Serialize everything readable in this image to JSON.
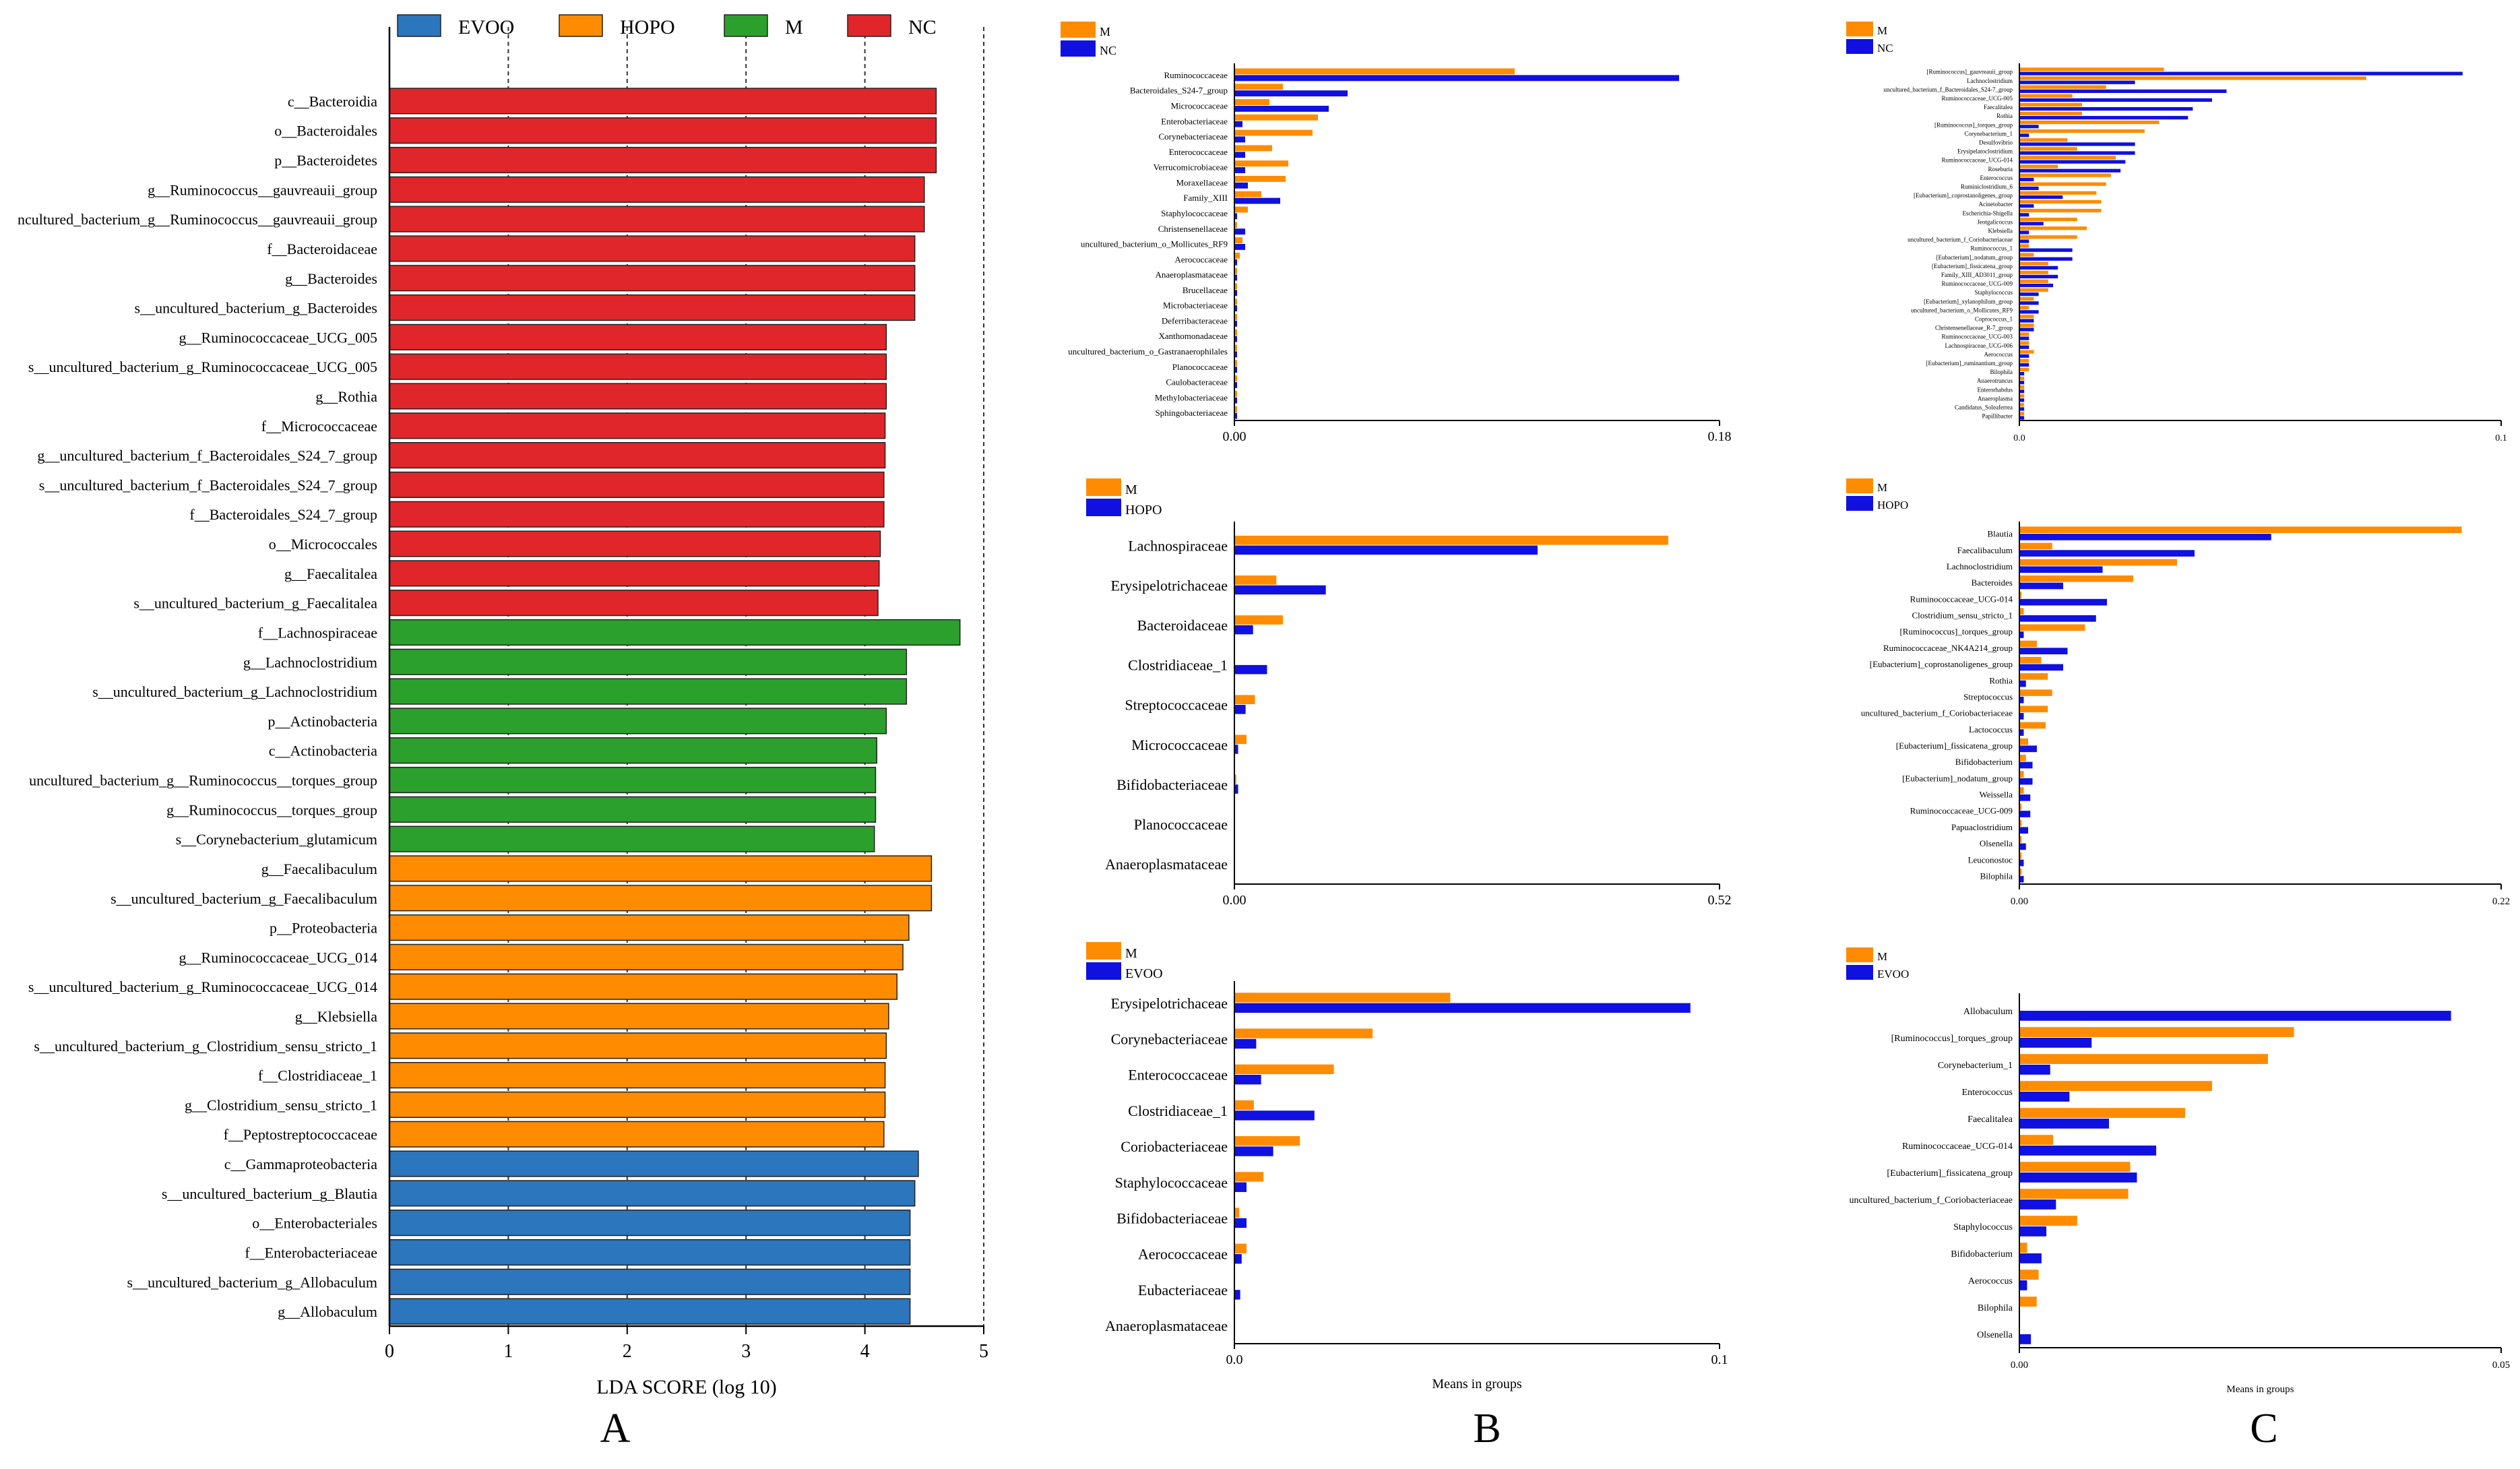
{
  "panel_letters": {
    "A": "A",
    "B": "B",
    "C": "C"
  },
  "colors": {
    "EVOO": "#2b76bd",
    "HOPO": "#ff8c00",
    "M": "#2ca02c",
    "NC": "#e0262a",
    "pair_a": "#ff8c00",
    "pair_b": "#1010e0"
  },
  "chart_data": [
    {
      "id": "A",
      "type": "bar",
      "orientation": "horizontal",
      "xlabel": "LDA SCORE (log 10)",
      "xlim": [
        0,
        5
      ],
      "xticks": [
        0,
        1,
        2,
        3,
        4,
        5
      ],
      "legend": [
        "EVOO",
        "HOPO",
        "M",
        "NC"
      ],
      "categories": [
        "c__Bacteroidia",
        "o__Bacteroidales",
        "p__Bacteroidetes",
        "g__Ruminococcus__gauvreauii_group",
        "ncultured_bacterium_g__Ruminococcus__gauvreauii_group",
        "f__Bacteroidaceae",
        "g__Bacteroides",
        "s__uncultured_bacterium_g_Bacteroides",
        "g__Ruminococcaceae_UCG_005",
        "s__uncultured_bacterium_g_Ruminococcaceae_UCG_005",
        "g__Rothia",
        "f__Micrococcaceae",
        "g__uncultured_bacterium_f_Bacteroidales_S24_7_group",
        "s__uncultured_bacterium_f_Bacteroidales_S24_7_group",
        "f__Bacteroidales_S24_7_group",
        "o__Micrococcales",
        "g__Faecalitalea",
        "s__uncultured_bacterium_g_Faecalitalea",
        "f__Lachnospiraceae",
        "g__Lachnoclostridium",
        "s__uncultured_bacterium_g_Lachnoclostridium",
        "p__Actinobacteria",
        "c__Actinobacteria",
        "uncultured_bacterium_g__Ruminococcus__torques_group",
        "g__Ruminococcus__torques_group",
        "s__Corynebacterium_glutamicum",
        "g__Faecalibaculum",
        "s__uncultured_bacterium_g_Faecalibaculum",
        "p__Proteobacteria",
        "g__Ruminococcaceae_UCG_014",
        "s__uncultured_bacterium_g_Ruminococcaceae_UCG_014",
        "g__Klebsiella",
        "s__uncultured_bacterium_g_Clostridium_sensu_stricto_1",
        "f__Clostridiaceae_1",
        "g__Clostridium_sensu_stricto_1",
        "f__Peptostreptococcaceae",
        "c__Gammaproteobacteria",
        "s__uncultured_bacterium_g_Blautia",
        "o__Enterobacteriales",
        "f__Enterobacteriaceae",
        "s__uncultured_bacterium_g_Allobaculum",
        "g__Allobaculum"
      ],
      "values": [
        4.6,
        4.6,
        4.6,
        4.5,
        4.5,
        4.42,
        4.42,
        4.42,
        4.18,
        4.18,
        4.18,
        4.17,
        4.17,
        4.16,
        4.16,
        4.13,
        4.12,
        4.11,
        4.8,
        4.35,
        4.35,
        4.18,
        4.1,
        4.09,
        4.09,
        4.08,
        4.56,
        4.56,
        4.37,
        4.32,
        4.27,
        4.2,
        4.18,
        4.17,
        4.17,
        4.16,
        4.45,
        4.42,
        4.38,
        4.38,
        4.38,
        4.38
      ],
      "groups": [
        "NC",
        "NC",
        "NC",
        "NC",
        "NC",
        "NC",
        "NC",
        "NC",
        "NC",
        "NC",
        "NC",
        "NC",
        "NC",
        "NC",
        "NC",
        "NC",
        "NC",
        "NC",
        "M",
        "M",
        "M",
        "M",
        "M",
        "M",
        "M",
        "M",
        "HOPO",
        "HOPO",
        "HOPO",
        "HOPO",
        "HOPO",
        "HOPO",
        "HOPO",
        "HOPO",
        "HOPO",
        "HOPO",
        "EVOO",
        "EVOO",
        "EVOO",
        "EVOO",
        "EVOO",
        "EVOO"
      ]
    },
    {
      "id": "B1",
      "type": "bar",
      "orientation": "horizontal",
      "legend": [
        "M",
        "NC"
      ],
      "xlim": [
        0,
        0.18
      ],
      "xticks": [
        "0.00",
        "0.18"
      ],
      "xlabel": "",
      "categories": [
        "Ruminococcaceae",
        "Bacteroidales_S24-7_group",
        "Micrococcaceae",
        "Enterobacteriaceae",
        "Corynebacteriaceae",
        "Enterococcaceae",
        "Verrucomicrobiaceae",
        "Moraxellaceae",
        "Family_XIII",
        "Staphylococcaceae",
        "Christensenellaceae",
        "uncultured_bacterium_o_Mollicutes_RF9",
        "Aerococcaceae",
        "Anaeroplasmataceae",
        "Brucellaceae",
        "Microbacteriaceae",
        "Deferribacteraceae",
        "Xanthomonadaceae",
        "uncultured_bacterium_o_Gastranaerophilales",
        "Planococcaceae",
        "Caulobacteraceae",
        "Methylobacteriaceae",
        "Sphingobacteriaceae"
      ],
      "series": [
        {
          "name": "M",
          "values": [
            0.104,
            0.018,
            0.013,
            0.031,
            0.029,
            0.014,
            0.02,
            0.019,
            0.01,
            0.005,
            0.001,
            0.003,
            0.002,
            0.001,
            0.001,
            0.001,
            0.001,
            0.001,
            0.001,
            0.001,
            0.001,
            0.001,
            0.001
          ]
        },
        {
          "name": "NC",
          "values": [
            0.165,
            0.042,
            0.035,
            0.003,
            0.004,
            0.004,
            0.004,
            0.005,
            0.017,
            0.001,
            0.004,
            0.004,
            0.001,
            0.001,
            0.001,
            0.001,
            0.001,
            0.001,
            0.001,
            0.001,
            0.001,
            0.001,
            0.001
          ]
        }
      ]
    },
    {
      "id": "B2",
      "type": "bar",
      "orientation": "horizontal",
      "legend": [
        "M",
        "HOPO"
      ],
      "xlim": [
        0,
        0.52
      ],
      "xticks": [
        "0.00",
        "0.52"
      ],
      "xlabel": "",
      "categories": [
        "Lachnospiraceae",
        "Erysipelotrichaceae",
        "Bacteroidaceae",
        "Clostridiaceae_1",
        "Streptococcaceae",
        "Micrococcaceae",
        "Bifidobacteriaceae",
        "Planococcaceae",
        "Anaeroplasmataceae"
      ],
      "series": [
        {
          "name": "M",
          "values": [
            0.465,
            0.045,
            0.052,
            0.0,
            0.022,
            0.013,
            0.002,
            0.0,
            0.0
          ]
        },
        {
          "name": "HOPO",
          "values": [
            0.325,
            0.098,
            0.02,
            0.035,
            0.012,
            0.004,
            0.004,
            0.0,
            0.0
          ]
        }
      ]
    },
    {
      "id": "B3",
      "type": "bar",
      "orientation": "horizontal",
      "legend": [
        "M",
        "EVOO"
      ],
      "xlim": [
        0,
        0.1
      ],
      "xticks": [
        "0.0",
        "0.1"
      ],
      "xlabel": "Means in groups",
      "categories": [
        "Erysipelotrichaceae",
        "Corynebacteriaceae",
        "Enterococcaceae",
        "Clostridiaceae_1",
        "Coriobacteriaceae",
        "Staphylococcaceae",
        "Bifidobacteriaceae",
        "Aerococcaceae",
        "Eubacteriaceae",
        "Anaeroplasmataceae"
      ],
      "series": [
        {
          "name": "M",
          "values": [
            0.0445,
            0.0285,
            0.0205,
            0.004,
            0.0135,
            0.006,
            0.001,
            0.0025,
            0.0,
            0.0
          ]
        },
        {
          "name": "EVOO",
          "values": [
            0.094,
            0.0045,
            0.0055,
            0.0165,
            0.008,
            0.0025,
            0.0025,
            0.0015,
            0.0012,
            0.0
          ]
        }
      ]
    },
    {
      "id": "C1",
      "type": "bar",
      "orientation": "horizontal",
      "legend": [
        "M",
        "NC"
      ],
      "xlim": [
        0,
        0.1
      ],
      "xticks": [
        "0.0",
        "0.1"
      ],
      "xlabel": "",
      "categories": [
        "[Ruminococcus]_gauvreauii_group",
        "Lachnoclostridium",
        "uncultured_bacterium_f_Bacteroidales_S24-7_group",
        "Ruminococcaceae_UCG-005",
        "Faecalitalea",
        "Rothia",
        "[Ruminococcus]_torques_group",
        "Corynebacterium_1",
        "Desulfovibrio",
        "Erysipelatoclostridium",
        "Ruminococcaceae_UCG-014",
        "Roseburia",
        "Enterococcus",
        "Ruminiclostridium_6",
        "[Eubacterium]_coprostanoligenes_group",
        "Acinetobacter",
        "Escherichia-Shigella",
        "Jeotgalicoccus",
        "Klebsiella",
        "uncultured_bacterium_f_Coriobacteriaceae",
        "Ruminococcus_1",
        "[Eubacterium]_nodatum_group",
        "[Eubacterium]_fissicatena_group",
        "Family_XIII_AD3011_group",
        "Ruminococcaceae_UCG-009",
        "Staphylococcus",
        "[Eubacterium]_xylanophilum_group",
        "uncultured_bacterium_o_Mollicutes_RF9",
        "Coprococcus_1",
        "Christensenellaceae_R-7_group",
        "Ruminococcaceae_UCG-003",
        "Lachnospiraceae_UCG-006",
        "Aerococcus",
        "[Eubacterium]_ruminantium_group",
        "Bilophila",
        "Anaerotruncus",
        "Enterorhabdus",
        "Anaeroplasma",
        "Candidatus_Soleaferrea",
        "Papillibacter"
      ],
      "series": [
        {
          "name": "M",
          "values": [
            0.03,
            0.072,
            0.018,
            0.011,
            0.013,
            0.013,
            0.029,
            0.026,
            0.01,
            0.012,
            0.02,
            0.008,
            0.019,
            0.018,
            0.016,
            0.017,
            0.017,
            0.012,
            0.014,
            0.012,
            0.002,
            0.003,
            0.006,
            0.006,
            0.006,
            0.006,
            0.003,
            0.002,
            0.003,
            0.003,
            0.002,
            0.002,
            0.003,
            0.002,
            0.002,
            0.001,
            0.001,
            0.001,
            0.001,
            0.001
          ]
        },
        {
          "name": "NC",
          "values": [
            0.092,
            0.024,
            0.043,
            0.04,
            0.036,
            0.035,
            0.004,
            0.002,
            0.024,
            0.024,
            0.022,
            0.021,
            0.003,
            0.004,
            0.009,
            0.003,
            0.002,
            0.005,
            0.002,
            0.002,
            0.011,
            0.011,
            0.008,
            0.008,
            0.007,
            0.004,
            0.004,
            0.004,
            0.003,
            0.003,
            0.002,
            0.002,
            0.002,
            0.002,
            0.001,
            0.001,
            0.001,
            0.001,
            0.001,
            0.001
          ]
        }
      ]
    },
    {
      "id": "C2",
      "type": "bar",
      "orientation": "horizontal",
      "legend": [
        "M",
        "HOPO"
      ],
      "xlim": [
        0,
        0.22
      ],
      "xticks": [
        "0.00",
        "0.22"
      ],
      "xlabel": "",
      "categories": [
        "Blautia",
        "Faecalibaculum",
        "Lachnoclostridium",
        "Bacteroides",
        "Ruminococcaceae_UCG-014",
        "Clostridium_sensu_stricto_1",
        "[Ruminococcus]_torques_group",
        "Ruminococcaceae_NK4A214_group",
        "[Eubacterium]_coprostanoligenes_group",
        "Rothia",
        "Streptococcus",
        "uncultured_bacterium_f_Coriobacteriaceae",
        "Lactococcus",
        "[Eubacterium]_fissicatena_group",
        "Bifidobacterium",
        "[Eubacterium]_nodatum_group",
        "Weissella",
        "Ruminococcaceae_UCG-009",
        "Papuaclostridium",
        "Olsenella",
        "Leuconostoc",
        "Bilophila"
      ],
      "series": [
        {
          "name": "M",
          "values": [
            0.202,
            0.015,
            0.072,
            0.052,
            0.001,
            0.002,
            0.03,
            0.008,
            0.01,
            0.013,
            0.015,
            0.013,
            0.012,
            0.004,
            0.003,
            0.002,
            0.002,
            0.001,
            0.001,
            0.001,
            0.001,
            0.001
          ]
        },
        {
          "name": "HOPO",
          "values": [
            0.115,
            0.08,
            0.038,
            0.02,
            0.04,
            0.035,
            0.002,
            0.022,
            0.02,
            0.003,
            0.002,
            0.002,
            0.002,
            0.008,
            0.006,
            0.006,
            0.005,
            0.005,
            0.004,
            0.003,
            0.002,
            0.002
          ]
        }
      ]
    },
    {
      "id": "C3",
      "type": "bar",
      "orientation": "horizontal",
      "legend": [
        "M",
        "EVOO"
      ],
      "xlim": [
        0,
        0.05
      ],
      "xticks": [
        "0.00",
        "0.05"
      ],
      "xlabel": "Means in groups",
      "categories": [
        "Allobaculum",
        "[Ruminococcus]_torques_group",
        "Corynebacterium_1",
        "Enterococcus",
        "Faecalitalea",
        "Ruminococcaceae_UCG-014",
        "[Eubacterium]_fissicatena_group",
        "uncultured_bacterium_f_Coriobacteriaceae",
        "Staphylococcus",
        "Bifidobacterium",
        "Aerococcus",
        "Bilophila",
        "Olsenella"
      ],
      "series": [
        {
          "name": "M",
          "values": [
            0.0,
            0.0285,
            0.0258,
            0.02,
            0.0172,
            0.0035,
            0.0115,
            0.0113,
            0.006,
            0.0008,
            0.002,
            0.0018,
            0.0
          ],
          "note": "M values read from orange bars"
        },
        {
          "name": "EVOO",
          "values": [
            0.0448,
            0.0075,
            0.0032,
            0.0052,
            0.0093,
            0.0142,
            0.0122,
            0.0038,
            0.0028,
            0.0023,
            0.0008,
            0.0,
            0.0012
          ]
        }
      ]
    }
  ]
}
